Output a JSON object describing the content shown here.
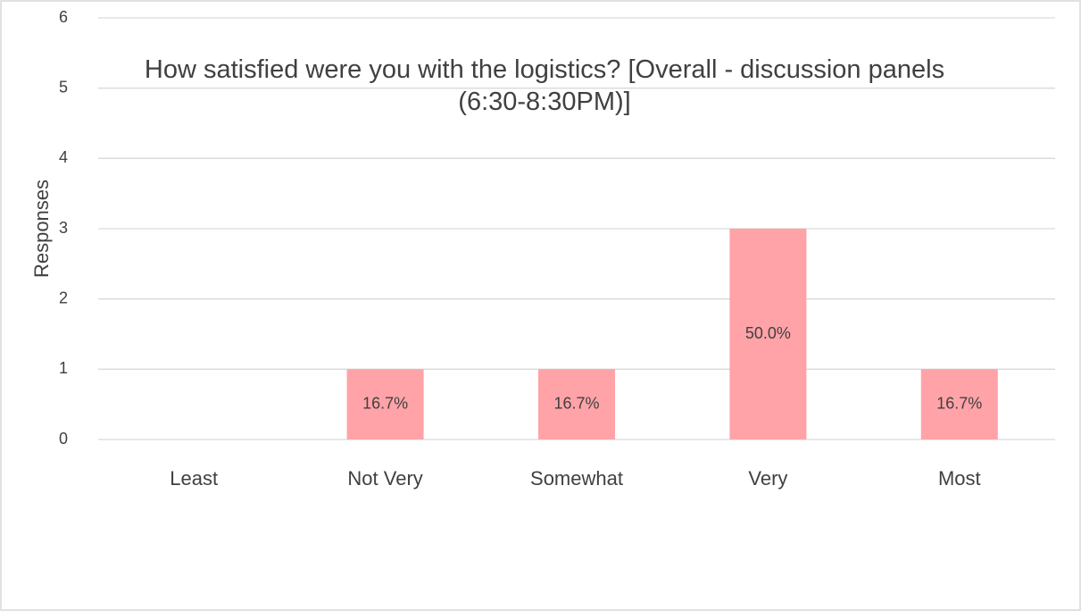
{
  "chart_data": {
    "type": "bar",
    "title": "How satisfied were you with the logistics? [Overall - discussion panels (6:30-8:30PM)]",
    "y_label": "Responses",
    "categories": [
      "Least",
      "Not Very",
      "Somewhat",
      "Very",
      "Most"
    ],
    "values": [
      0,
      1,
      1,
      3,
      1
    ],
    "percentages": [
      null,
      16.7,
      16.7,
      50.0,
      16.7
    ],
    "percentage_labels": [
      null,
      "16.7%",
      "16.7%",
      "50.0%",
      "16.7%"
    ],
    "color": "#ffa3a8",
    "ylim": [
      0,
      6
    ],
    "yticks": [
      0,
      1,
      2,
      3,
      4,
      5,
      6
    ],
    "grid": true
  }
}
